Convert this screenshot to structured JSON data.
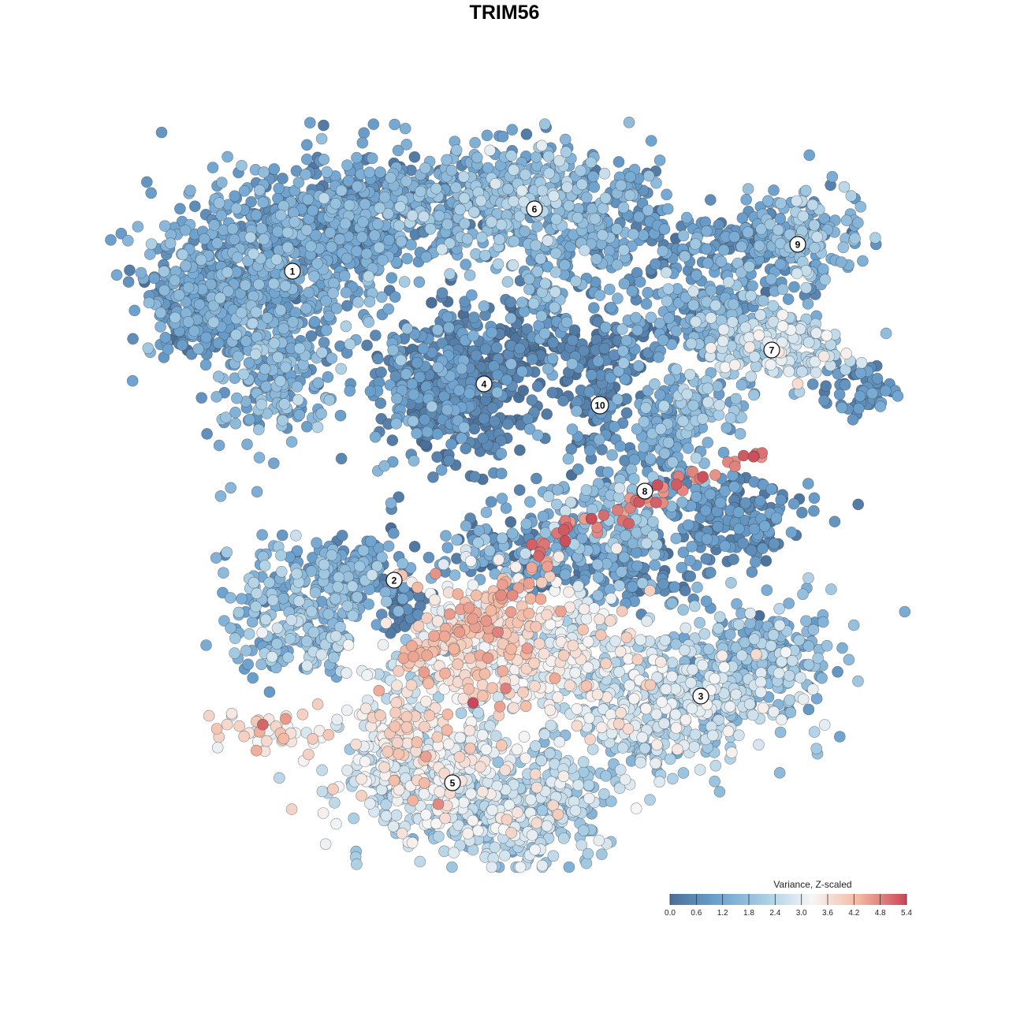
{
  "chart_data": {
    "type": "scatter",
    "title": "TRIM56",
    "xlabel": "",
    "ylabel": "",
    "axes_visible": false,
    "grid": false,
    "point_count_estimate": 6000,
    "color_scale": {
      "title": "Variance, Z-scaled",
      "min": 0.0,
      "max": 5.4,
      "ticks": [
        0.0,
        0.6,
        1.2,
        1.8,
        2.4,
        3.0,
        3.6,
        4.2,
        4.8,
        5.4
      ],
      "tick_labels": [
        "0.0",
        "0.6",
        "1.2",
        "1.8",
        "2.4",
        "3.0",
        "3.6",
        "4.2",
        "4.8",
        "5.4"
      ],
      "colors": [
        "#4a6f98",
        "#6da2cf",
        "#a8cde4",
        "#f6f6f6",
        "#f3b7a0",
        "#c94756"
      ],
      "placement": "bottom-right"
    },
    "clusters": [
      {
        "label": "1",
        "typical_value": 1.1
      },
      {
        "label": "2",
        "typical_value": 1.3
      },
      {
        "label": "3",
        "typical_value": 2.3
      },
      {
        "label": "4",
        "typical_value": 0.5
      },
      {
        "label": "5",
        "typical_value": 2.5
      },
      {
        "label": "6",
        "typical_value": 1.2
      },
      {
        "label": "7",
        "typical_value": 2.2
      },
      {
        "label": "8",
        "typical_value": 1.6
      },
      {
        "label": "9",
        "typical_value": 1.2
      },
      {
        "label": "10",
        "typical_value": 0.6
      }
    ]
  }
}
